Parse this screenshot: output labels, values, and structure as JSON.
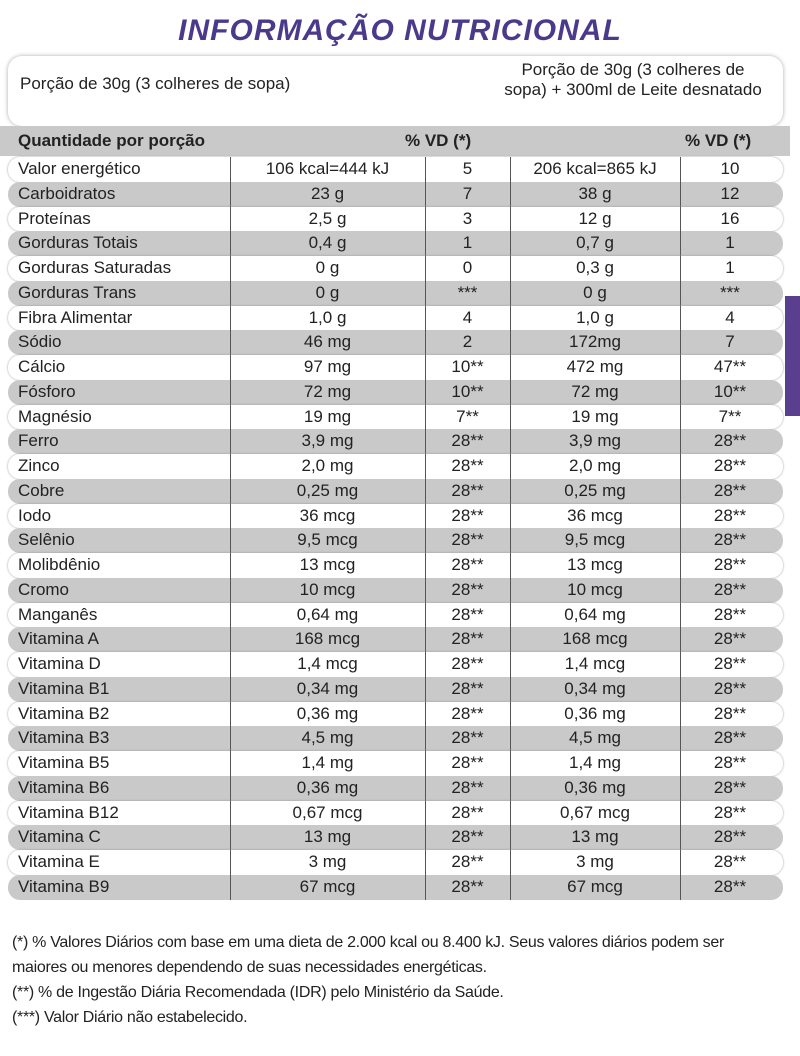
{
  "header": {
    "title": "INFORMAÇÃO NUTRICIONAL",
    "portion_1": "Porção de 30g (3 colheres de sopa)",
    "portion_2": "Porção de 30g (3 colheres de sopa) + 300ml de Leite desnatado"
  },
  "table": {
    "columns": [
      "Quantidade por porção",
      "% VD (*)",
      "% VD (*)"
    ],
    "rows": [
      [
        "Valor energético",
        "106 kcal=444 kJ",
        "5",
        "206 kcal=865 kJ",
        "10"
      ],
      [
        "Carboidratos",
        "23 g",
        "7",
        "38 g",
        "12"
      ],
      [
        "Proteínas",
        "2,5 g",
        "3",
        "12 g",
        "16"
      ],
      [
        "Gorduras Totais",
        "0,4 g",
        "1",
        "0,7 g",
        "1"
      ],
      [
        "Gorduras Saturadas",
        "0 g",
        "0",
        "0,3 g",
        "1"
      ],
      [
        "Gorduras Trans",
        "0 g",
        "***",
        "0 g",
        "***"
      ],
      [
        "Fibra Alimentar",
        "1,0 g",
        "4",
        "1,0 g",
        "4"
      ],
      [
        "Sódio",
        "46 mg",
        "2",
        "172mg",
        "7"
      ],
      [
        "Cálcio",
        "97 mg",
        "10**",
        "472 mg",
        "47**"
      ],
      [
        "Fósforo",
        "72 mg",
        "10**",
        "72 mg",
        "10**"
      ],
      [
        "Magnésio",
        "19 mg",
        "7**",
        "19 mg",
        "7**"
      ],
      [
        "Ferro",
        "3,9 mg",
        "28**",
        "3,9 mg",
        "28**"
      ],
      [
        "Zinco",
        "2,0 mg",
        "28**",
        "2,0 mg",
        "28**"
      ],
      [
        "Cobre",
        "0,25 mg",
        "28**",
        "0,25 mg",
        "28**"
      ],
      [
        "Iodo",
        "36 mcg",
        "28**",
        "36 mcg",
        "28**"
      ],
      [
        "Selênio",
        "9,5 mcg",
        "28**",
        "9,5 mcg",
        "28**"
      ],
      [
        "Molibdênio",
        "13 mcg",
        "28**",
        "13 mcg",
        "28**"
      ],
      [
        "Cromo",
        "10 mcg",
        "28**",
        "10 mcg",
        "28**"
      ],
      [
        "Manganês",
        "0,64 mg",
        "28**",
        "0,64 mg",
        "28**"
      ],
      [
        "Vitamina A",
        "168 mcg",
        "28**",
        "168 mcg",
        "28**"
      ],
      [
        "Vitamina D",
        "1,4 mcg",
        "28**",
        "1,4 mcg",
        "28**"
      ],
      [
        "Vitamina B1",
        "0,34 mg",
        "28**",
        "0,34 mg",
        "28**"
      ],
      [
        "Vitamina B2",
        "0,36 mg",
        "28**",
        "0,36 mg",
        "28**"
      ],
      [
        "Vitamina B3",
        "4,5 mg",
        "28**",
        "4,5 mg",
        "28**"
      ],
      [
        "Vitamina B5",
        "1,4 mg",
        "28**",
        "1,4 mg",
        "28**"
      ],
      [
        "Vitamina B6",
        "0,36 mg",
        "28**",
        "0,36 mg",
        "28**"
      ],
      [
        "Vitamina B12",
        "0,67 mcg",
        "28**",
        "0,67 mcg",
        "28**"
      ],
      [
        "Vitamina C",
        "13 mg",
        "28**",
        "13 mg",
        "28**"
      ],
      [
        "Vitamina E",
        "3 mg",
        "28**",
        "3 mg",
        "28**"
      ],
      [
        "Vitamina B9",
        "67 mcg",
        "28**",
        "67 mcg",
        "28**"
      ]
    ]
  },
  "footnotes": [
    "(*) % Valores Diários com base em uma dieta de 2.000 kcal ou 8.400 kJ. Seus valores diários podem ser maiores ou menores dependendo de suas necessidades energéticas.",
    "(**) % de Ingestão Diária Recomendada (IDR) pelo Ministério da Saúde.",
    "(***) Valor Diário não estabelecido."
  ]
}
